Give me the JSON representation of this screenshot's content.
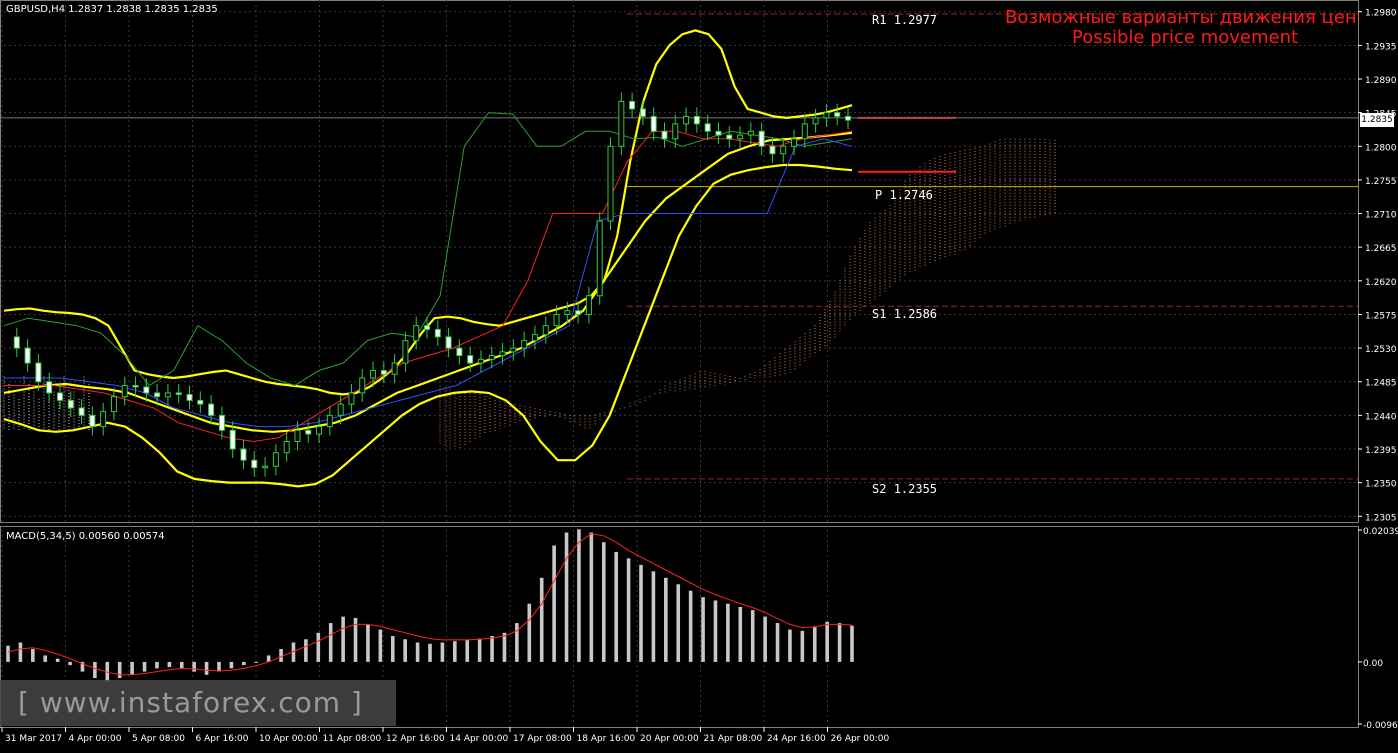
{
  "header": {
    "title": "GBPUSD,H4  1.2837 1.2838 1.2835 1.2835",
    "overlay_ru": "Возможные варианты движения цен",
    "overlay_en": "Possible price movement",
    "macd_title": "MACD(5,34,5) 0.00560 0.00574",
    "current_price": "1.2835"
  },
  "watermark": {
    "text": "[ www.instaforex.com ]"
  },
  "pivots": [
    {
      "label": "R1",
      "value": "1.2977",
      "price": 1.2977,
      "color": "#8b2a2a"
    },
    {
      "label": "P",
      "value": "1.2746",
      "price": 1.2746,
      "color": "#c9b000"
    },
    {
      "label": "S1",
      "value": "1.2586",
      "price": 1.2586,
      "color": "#8b2a2a"
    },
    {
      "label": "S2",
      "value": "1.2355",
      "price": 1.2355,
      "color": "#8b2a2a"
    }
  ],
  "chart_data": [
    {
      "type": "line",
      "title": "GBPUSD,H4",
      "y_ticks": [
        "1.2980",
        "1.2935",
        "1.2890",
        "1.2845",
        "1.2800",
        "1.2755",
        "1.2710",
        "1.2665",
        "1.2620",
        "1.2575",
        "1.2530",
        "1.2485",
        "1.2440",
        "1.2395",
        "1.2350",
        "1.2305"
      ],
      "ylim": [
        1.23,
        1.2985
      ],
      "x_ticks": [
        "31 Mar 2017",
        "4 Apr 00:00",
        "5 Apr 08:00",
        "6 Apr 16:00",
        "10 Apr 00:00",
        "11 Apr 08:00",
        "12 Apr 16:00",
        "14 Apr 00:00",
        "17 Apr 08:00",
        "18 Apr 16:00",
        "20 Apr 00:00",
        "21 Apr 08:00",
        "24 Apr 16:00",
        "26 Apr 00:00"
      ],
      "series": [
        {
          "name": "Close",
          "color": "#ffffff",
          "values": [
            1.2545,
            1.253,
            1.251,
            1.2485,
            1.247,
            1.246,
            1.245,
            1.244,
            1.2425,
            1.2445,
            1.2465,
            1.248,
            1.2478,
            1.247,
            1.2465,
            1.247,
            1.2468,
            1.246,
            1.2455,
            1.244,
            1.242,
            1.2395,
            1.238,
            1.237,
            1.2372,
            1.239,
            1.2405,
            1.242,
            1.2415,
            1.2425,
            1.244,
            1.2455,
            1.247,
            1.249,
            1.25,
            1.2495,
            1.251,
            1.254,
            1.256,
            1.2555,
            1.2545,
            1.253,
            1.252,
            1.251,
            1.2515,
            1.252,
            1.2525,
            1.253,
            1.254,
            1.2548,
            1.256,
            1.2575,
            1.258,
            1.2575,
            1.26,
            1.27,
            1.28,
            1.286,
            1.285,
            1.284,
            1.282,
            1.281,
            1.283,
            1.284,
            1.283,
            1.282,
            1.2815,
            1.281,
            1.2815,
            1.282,
            1.28,
            1.279,
            1.28,
            1.281,
            1.283,
            1.2838,
            1.2845,
            1.284,
            1.2835
          ]
        },
        {
          "name": "BB Upper",
          "color": "#ffff00",
          "values": [
            1.258,
            1.2582,
            1.2583,
            1.258,
            1.2578,
            1.2577,
            1.2575,
            1.257,
            1.256,
            1.253,
            1.25,
            1.2495,
            1.2492,
            1.249,
            1.2492,
            1.2495,
            1.2498,
            1.25,
            1.2495,
            1.249,
            1.2485,
            1.2482,
            1.248,
            1.2478,
            1.2475,
            1.247,
            1.2468,
            1.247,
            1.2478,
            1.249,
            1.2505,
            1.2525,
            1.255,
            1.257,
            1.2572,
            1.257,
            1.2565,
            1.2562,
            1.256,
            1.2565,
            1.257,
            1.2575,
            1.258,
            1.2585,
            1.259,
            1.26,
            1.262,
            1.268,
            1.278,
            1.286,
            1.291,
            1.2935,
            1.295,
            1.2955,
            1.295,
            1.293,
            1.288,
            1.285,
            1.2845,
            1.284,
            1.2838,
            1.284,
            1.2842,
            1.2845,
            1.285,
            1.2855
          ]
        },
        {
          "name": "BB Lower",
          "color": "#ffff00",
          "values": [
            1.2435,
            1.2428,
            1.242,
            1.2418,
            1.242,
            1.2425,
            1.243,
            1.2425,
            1.241,
            1.239,
            1.2365,
            1.2355,
            1.2352,
            1.235,
            1.235,
            1.235,
            1.2348,
            1.2345,
            1.2348,
            1.236,
            1.238,
            1.24,
            1.242,
            1.244,
            1.2455,
            1.2465,
            1.247,
            1.2472,
            1.247,
            1.246,
            1.244,
            1.2405,
            1.238,
            1.238,
            1.24,
            1.244,
            1.25,
            1.256,
            1.262,
            1.268,
            1.272,
            1.275,
            1.2762,
            1.2768,
            1.2772,
            1.2775,
            1.2775,
            1.2773,
            1.277,
            1.2768
          ]
        },
        {
          "name": "BB Middle",
          "color": "#ffff00",
          "values": [
            1.247,
            1.2475,
            1.248,
            1.2482,
            1.2478,
            1.2475,
            1.247,
            1.246,
            1.245,
            1.244,
            1.243,
            1.2425,
            1.242,
            1.2418,
            1.242,
            1.2425,
            1.243,
            1.244,
            1.2455,
            1.247,
            1.248,
            1.249,
            1.25,
            1.251,
            1.252,
            1.253,
            1.2545,
            1.256,
            1.258,
            1.262,
            1.266,
            1.27,
            1.273,
            1.275,
            1.277,
            1.279,
            1.28,
            1.2808,
            1.281,
            1.2812,
            1.2815,
            1.2818
          ]
        },
        {
          "name": "Chikou",
          "color": "#2ea02e",
          "values": [
            1.256,
            1.257,
            1.2565,
            1.256,
            1.255,
            1.252,
            1.248,
            1.25,
            1.256,
            1.254,
            1.251,
            1.249,
            1.248,
            1.25,
            1.251,
            1.254,
            1.255,
            1.2545,
            1.26,
            1.28,
            1.2845,
            1.2843,
            1.28,
            1.28,
            1.282,
            1.282,
            1.281,
            1.2812,
            1.28,
            1.281,
            1.282,
            1.2815,
            1.281,
            1.28,
            1.2805,
            1.281
          ]
        },
        {
          "name": "Tenkan",
          "color": "#ff2020",
          "values": [
            1.248,
            1.248,
            1.248,
            1.2475,
            1.247,
            1.246,
            1.245,
            1.243,
            1.242,
            1.241,
            1.2405,
            1.241,
            1.243,
            1.245,
            1.247,
            1.249,
            1.251,
            1.252,
            1.253,
            1.2545,
            1.256,
            1.262,
            1.271,
            1.271,
            1.271,
            1.278,
            1.282,
            1.282,
            1.281,
            1.281,
            1.2805,
            1.28,
            1.281,
            1.2815,
            1.282
          ]
        },
        {
          "name": "Kijun",
          "color": "#3050ff",
          "values": [
            1.249,
            1.249,
            1.249,
            1.2485,
            1.248,
            1.247,
            1.245,
            1.244,
            1.243,
            1.2425,
            1.2425,
            1.243,
            1.244,
            1.245,
            1.246,
            1.247,
            1.248,
            1.25,
            1.252,
            1.254,
            1.256,
            1.27,
            1.271,
            1.271,
            1.271,
            1.271,
            1.271,
            1.271,
            1.28,
            1.281,
            1.28
          ]
        }
      ]
    },
    {
      "type": "bar",
      "title": "MACD(5,34,5)",
      "y_ticks": [
        "0.02039",
        "0.00",
        "-0.00960"
      ],
      "ylim": [
        -0.0096,
        0.02039
      ],
      "series": [
        {
          "name": "MACD",
          "color": "#c8c8c8",
          "values": [
            0.0025,
            0.003,
            0.002,
            0.001,
            0.0005,
            -0.0005,
            -0.0015,
            -0.0025,
            -0.003,
            -0.0025,
            -0.002,
            -0.0015,
            -0.001,
            -0.0008,
            -0.001,
            -0.0015,
            -0.002,
            -0.0015,
            -0.001,
            -0.0005,
            0.0,
            0.001,
            0.002,
            0.003,
            0.0035,
            0.0045,
            0.006,
            0.007,
            0.0068,
            0.0058,
            0.005,
            0.004,
            0.0035,
            0.003,
            0.0028,
            0.003,
            0.0032,
            0.0034,
            0.0036,
            0.004,
            0.0045,
            0.006,
            0.009,
            0.013,
            0.018,
            0.02,
            0.0205,
            0.02,
            0.0185,
            0.017,
            0.016,
            0.015,
            0.014,
            0.013,
            0.012,
            0.011,
            0.01,
            0.0095,
            0.009,
            0.0085,
            0.008,
            0.007,
            0.006,
            0.005,
            0.0048,
            0.0055,
            0.0062,
            0.006,
            0.0056
          ]
        },
        {
          "name": "Signal",
          "color": "#ff2020",
          "values": [
            0.0015,
            0.002,
            0.0022,
            0.0018,
            0.0012,
            0.0005,
            -0.0003,
            -0.001,
            -0.0016,
            -0.002,
            -0.002,
            -0.0018,
            -0.0015,
            -0.0012,
            -0.001,
            -0.0011,
            -0.0013,
            -0.0014,
            -0.0013,
            -0.001,
            -0.0006,
            0.0,
            0.0008,
            0.0016,
            0.0024,
            0.0032,
            0.0042,
            0.0052,
            0.0058,
            0.0058,
            0.0055,
            0.005,
            0.0045,
            0.004,
            0.0036,
            0.0034,
            0.0034,
            0.0034,
            0.0035,
            0.0037,
            0.004,
            0.0048,
            0.0065,
            0.009,
            0.0125,
            0.016,
            0.0185,
            0.0198,
            0.0195,
            0.0185,
            0.0172,
            0.0162,
            0.0152,
            0.0142,
            0.0132,
            0.0122,
            0.0112,
            0.0104,
            0.0097,
            0.009,
            0.0084,
            0.0076,
            0.0067,
            0.0058,
            0.0053,
            0.0054,
            0.0058,
            0.0058,
            0.0057
          ]
        }
      ]
    }
  ]
}
